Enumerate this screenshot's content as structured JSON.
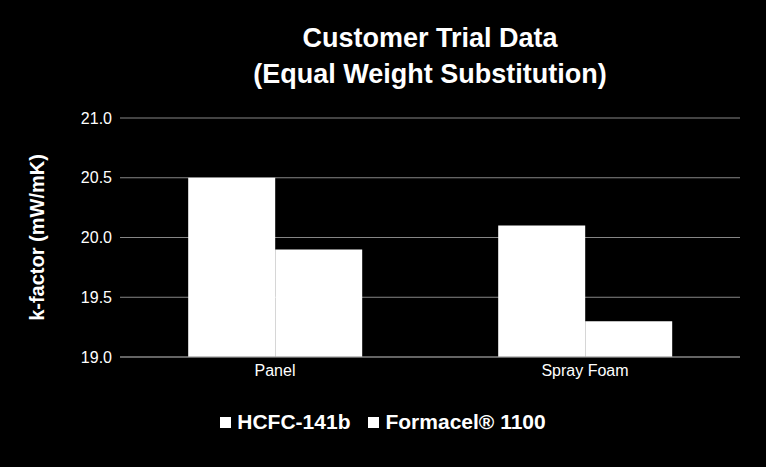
{
  "chart_data": {
    "type": "bar",
    "title": "Customer Trial Data",
    "subtitle": "(Equal Weight Substitution)",
    "y_label": "k-factor (mW/mK)",
    "categories": [
      "Panel",
      "Spray Foam"
    ],
    "series": [
      {
        "name": "HCFC-141b",
        "color": "#ffffff",
        "values": [
          20.5,
          20.1
        ]
      },
      {
        "name": "Formacel® 1100",
        "color": "#ffffff",
        "values": [
          19.9,
          19.3
        ]
      }
    ],
    "ylim": [
      19,
      21
    ],
    "yticks": [
      {
        "value": 19,
        "label": "19.0"
      },
      {
        "value": 19.5,
        "label": "19.5"
      },
      {
        "value": 20,
        "label": "20.0"
      },
      {
        "value": 20.5,
        "label": "20.5"
      },
      {
        "value": 21,
        "label": "21.0"
      }
    ],
    "grid": true,
    "legend": "bottom"
  }
}
